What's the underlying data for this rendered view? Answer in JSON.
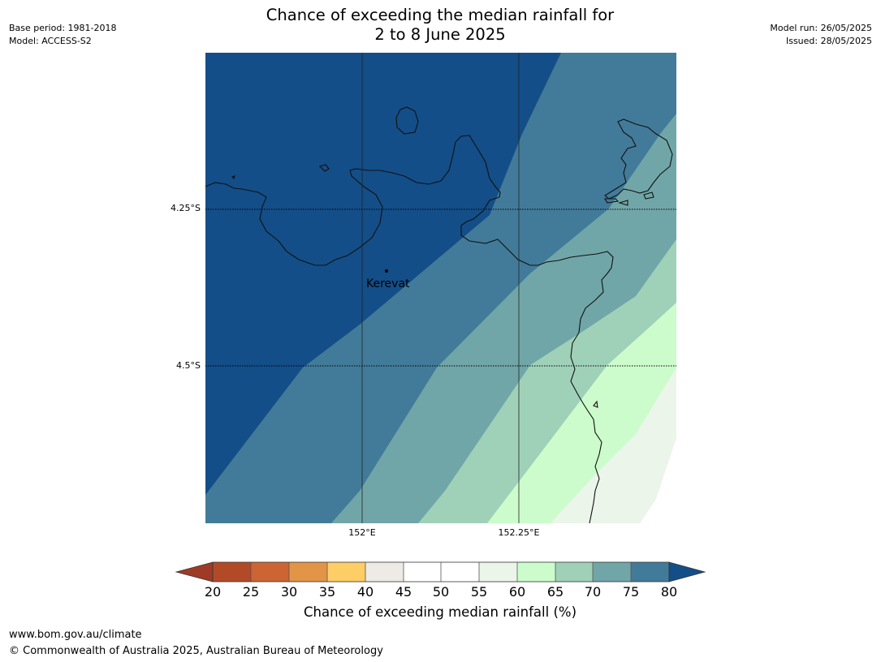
{
  "title": {
    "line1": "Chance of exceeding the median rainfall for",
    "line2": "2 to 8 June 2025"
  },
  "meta": {
    "base_period": "Base period: 1981-2018",
    "model": "Model: ACCESS-S2",
    "model_run": "Model run: 26/05/2025",
    "issued": "Issued: 28/05/2025"
  },
  "map": {
    "lat_labels": [
      "4.25°S",
      "4.5°S"
    ],
    "lon_labels": [
      "152°E",
      "152.25°E"
    ],
    "place": "Kerevat"
  },
  "colorbar": {
    "label": "Chance of exceeding median rainfall (%)",
    "ticks": [
      "20",
      "25",
      "30",
      "35",
      "40",
      "45",
      "50",
      "55",
      "60",
      "65",
      "70",
      "75",
      "80"
    ],
    "colors": {
      "below_20": "#9e3a26",
      "20_25": "#b24a28",
      "25_30": "#cc6433",
      "30_35": "#e39547",
      "35_40": "#fdcd66",
      "40_45": "#eeeae6",
      "45_50": "#ffffff",
      "50_55": "#ffffff",
      "55_60": "#ebf5ea",
      "60_65": "#ccfccc",
      "65_70": "#9fd1b9",
      "70_75": "#70a6a8",
      "75_80": "#427b99",
      "above_80": "#134e88"
    }
  },
  "footer": {
    "url": "www.bom.gov.au/climate",
    "copyright": "© Commonwealth of Australia 2025, Australian Bureau of Meteorology"
  }
}
